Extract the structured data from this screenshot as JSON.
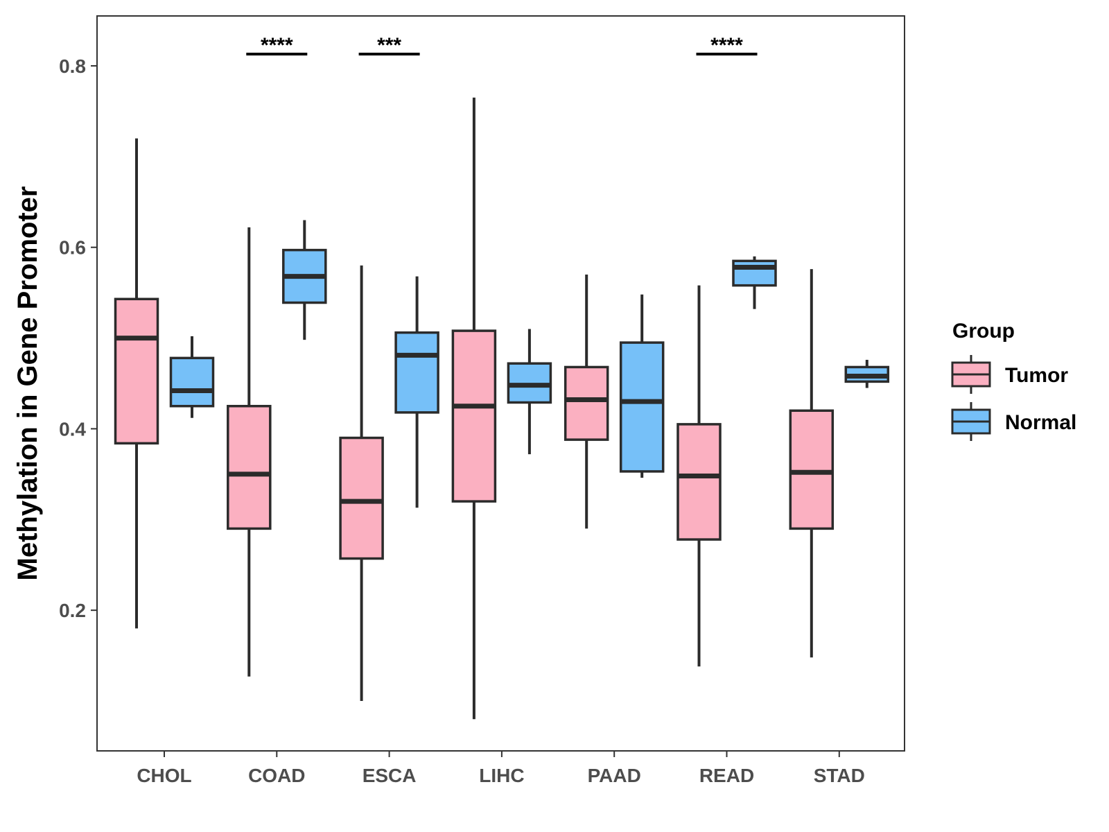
{
  "chart_data": {
    "type": "boxplot",
    "title": "",
    "xlabel": "",
    "ylabel": "Methylation in Gene Promoter",
    "ylim": [
      0.045,
      0.855
    ],
    "yticks": [
      0.2,
      0.4,
      0.6,
      0.8
    ],
    "ytick_labels": [
      "0.2",
      "0.4",
      "0.6",
      "0.8"
    ],
    "categories": [
      "CHOL",
      "COAD",
      "ESCA",
      "LIHC",
      "PAAD",
      "READ",
      "STAD"
    ],
    "legend": {
      "title": "Group",
      "position": "right",
      "entries": [
        {
          "name": "Tumor",
          "color": "#FBB0C1"
        },
        {
          "name": "Normal",
          "color": "#76C0F8"
        }
      ]
    },
    "series": [
      {
        "name": "Tumor",
        "color": "#FBB0C1",
        "boxes": [
          {
            "category": "CHOL",
            "min": 0.18,
            "q1": 0.384,
            "median": 0.5,
            "q3": 0.543,
            "max": 0.72
          },
          {
            "category": "COAD",
            "min": 0.127,
            "q1": 0.29,
            "median": 0.35,
            "q3": 0.425,
            "max": 0.622
          },
          {
            "category": "ESCA",
            "min": 0.1,
            "q1": 0.257,
            "median": 0.32,
            "q3": 0.39,
            "max": 0.58
          },
          {
            "category": "LIHC",
            "min": 0.08,
            "q1": 0.32,
            "median": 0.425,
            "q3": 0.508,
            "max": 0.765
          },
          {
            "category": "PAAD",
            "min": 0.29,
            "q1": 0.388,
            "median": 0.432,
            "q3": 0.468,
            "max": 0.57
          },
          {
            "category": "READ",
            "min": 0.138,
            "q1": 0.278,
            "median": 0.348,
            "q3": 0.405,
            "max": 0.558
          },
          {
            "category": "STAD",
            "min": 0.148,
            "q1": 0.29,
            "median": 0.352,
            "q3": 0.42,
            "max": 0.576
          }
        ]
      },
      {
        "name": "Normal",
        "color": "#76C0F8",
        "boxes": [
          {
            "category": "CHOL",
            "min": 0.412,
            "q1": 0.425,
            "median": 0.442,
            "q3": 0.478,
            "max": 0.502
          },
          {
            "category": "COAD",
            "min": 0.498,
            "q1": 0.539,
            "median": 0.568,
            "q3": 0.597,
            "max": 0.63
          },
          {
            "category": "ESCA",
            "min": 0.313,
            "q1": 0.418,
            "median": 0.481,
            "q3": 0.506,
            "max": 0.568
          },
          {
            "category": "LIHC",
            "min": 0.372,
            "q1": 0.429,
            "median": 0.448,
            "q3": 0.472,
            "max": 0.51
          },
          {
            "category": "PAAD",
            "min": 0.346,
            "q1": 0.353,
            "median": 0.43,
            "q3": 0.495,
            "max": 0.548
          },
          {
            "category": "READ",
            "min": 0.532,
            "q1": 0.558,
            "median": 0.578,
            "q3": 0.585,
            "max": 0.59
          },
          {
            "category": "STAD",
            "min": 0.445,
            "q1": 0.452,
            "median": 0.458,
            "q3": 0.468,
            "max": 0.476
          }
        ]
      }
    ],
    "annotations": [
      {
        "category": "COAD",
        "label": "****",
        "y": 0.813
      },
      {
        "category": "ESCA",
        "label": "***",
        "y": 0.813
      },
      {
        "category": "READ",
        "label": "****",
        "y": 0.813
      }
    ]
  }
}
